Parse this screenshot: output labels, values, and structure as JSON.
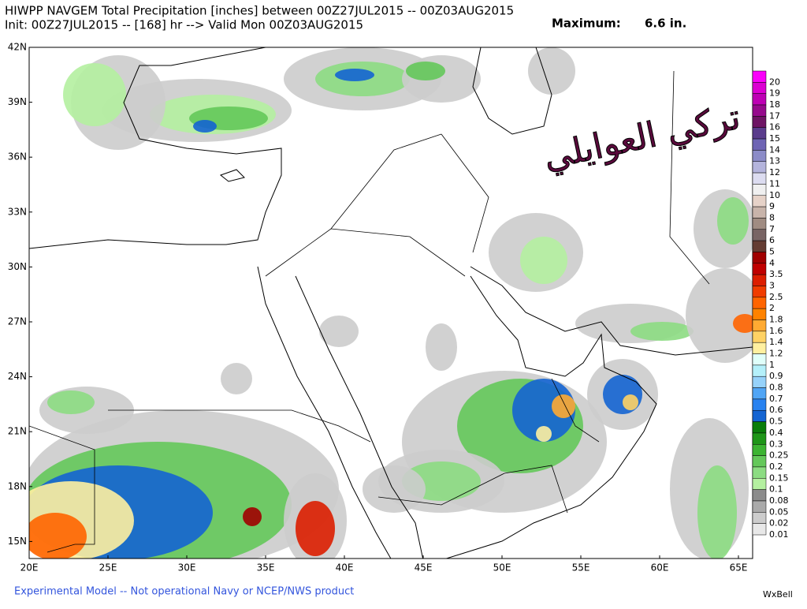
{
  "header": {
    "title": "HIWPP NAVGEM Total Precipitation [inches] between 00Z27JUL2015 -- 00Z03AUG2015",
    "init": "Init: 00Z27JUL2015 -- [168] hr --> Valid Mon 00Z03AUG2015",
    "maximum_label": "Maximum:",
    "maximum_value": "6.6 in."
  },
  "map": {
    "lat_labels": [
      "42N",
      "39N",
      "36N",
      "33N",
      "30N",
      "27N",
      "24N",
      "21N",
      "18N",
      "15N"
    ],
    "lon_labels": [
      "20E",
      "25E",
      "30E",
      "35E",
      "40E",
      "45E",
      "50E",
      "55E",
      "60E",
      "65E"
    ],
    "watermark": "تركي العوايلي"
  },
  "colorbar": {
    "levels": [
      {
        "label": "20",
        "color": "#fa00fa"
      },
      {
        "label": "19",
        "color": "#dc00d2"
      },
      {
        "label": "18",
        "color": "#be00b4"
      },
      {
        "label": "17",
        "color": "#960a8c"
      },
      {
        "label": "16",
        "color": "#6e1464"
      },
      {
        "label": "15",
        "color": "#5a3c8c"
      },
      {
        "label": "14",
        "color": "#6e64b4"
      },
      {
        "label": "13",
        "color": "#8c8cc8"
      },
      {
        "label": "12",
        "color": "#b4b4dc"
      },
      {
        "label": "11",
        "color": "#dcdcf0"
      },
      {
        "label": "10",
        "color": "#f0f0f0"
      },
      {
        "label": "9",
        "color": "#e6d2c8"
      },
      {
        "label": "8",
        "color": "#c8b4aa"
      },
      {
        "label": "7",
        "color": "#a08c82"
      },
      {
        "label": "6",
        "color": "#786464"
      },
      {
        "label": "5",
        "color": "#643c32"
      },
      {
        "label": "4",
        "color": "#a00000"
      },
      {
        "label": "3.5",
        "color": "#c00000"
      },
      {
        "label": "3",
        "color": "#dc1e00"
      },
      {
        "label": "2.5",
        "color": "#f03c00"
      },
      {
        "label": "2",
        "color": "#ff6400"
      },
      {
        "label": "1.8",
        "color": "#ff8200"
      },
      {
        "label": "1.6",
        "color": "#ffaa32"
      },
      {
        "label": "1.4",
        "color": "#ffd264"
      },
      {
        "label": "1.2",
        "color": "#fff0a0"
      },
      {
        "label": "1",
        "color": "#e0fffa"
      },
      {
        "label": "0.9",
        "color": "#b4f0fa"
      },
      {
        "label": "0.8",
        "color": "#96d2fa"
      },
      {
        "label": "0.7",
        "color": "#50a5f5"
      },
      {
        "label": "0.6",
        "color": "#2882f0"
      },
      {
        "label": "0.5",
        "color": "#1464d2"
      },
      {
        "label": "0.4",
        "color": "#0a7d0a"
      },
      {
        "label": "0.3",
        "color": "#1e9618"
      },
      {
        "label": "0.25",
        "color": "#3cb432"
      },
      {
        "label": "0.2",
        "color": "#64c85a"
      },
      {
        "label": "0.15",
        "color": "#8cdc82"
      },
      {
        "label": "0.1",
        "color": "#b4f0a0"
      },
      {
        "label": "0.08",
        "color": "#8c8c8c"
      },
      {
        "label": "0.05",
        "color": "#aaaaaa"
      },
      {
        "label": "0.02",
        "color": "#cccccc"
      },
      {
        "label": "0.01",
        "color": "#e8e8e8"
      }
    ]
  },
  "footer": {
    "disclaimer": "Experimental Model -- Not operational Navy or NCEP/NWS product",
    "brand": "WxBell"
  }
}
